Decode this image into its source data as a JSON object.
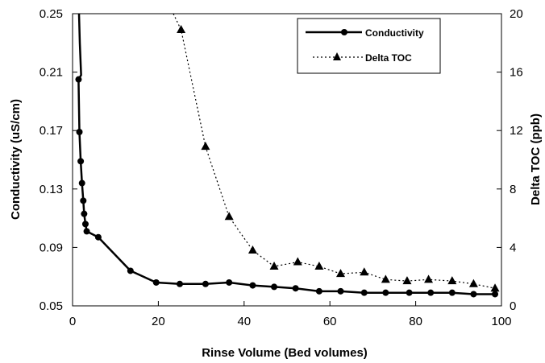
{
  "chart_data": {
    "type": "line",
    "xlabel": "Rinse Volume  (Bed volumes)",
    "ylabel": "Conductivity  (uS/cm)",
    "y2label": "Delta TOC  (ppb)",
    "xlim": [
      0,
      100
    ],
    "ylim": [
      0.05,
      0.25
    ],
    "y2lim": [
      0,
      20
    ],
    "xticks": [
      "0",
      "20",
      "40",
      "60",
      "80",
      "100"
    ],
    "yticks": [
      "0.05",
      "0.09",
      "0.13",
      "0.17",
      "0.21",
      "0.25"
    ],
    "y2ticks": [
      "0",
      "4",
      "8",
      "12",
      "16",
      "20"
    ],
    "grid": false,
    "legend_position": "top-right",
    "series": [
      {
        "name": "Conductivity",
        "axis": "left",
        "color": "#000000",
        "line_style": "solid",
        "marker": "circle",
        "curve_x": [
          1.5,
          1.7,
          2.0
        ],
        "curve_y": [
          0.25,
          0.23,
          0.208
        ],
        "x": [
          1.4,
          1.6,
          1.9,
          2.2,
          2.5,
          2.7,
          3.0,
          3.3,
          6.0,
          13.5,
          19.5,
          25.0,
          31.0,
          36.5,
          42.0,
          47.0,
          52.0,
          57.5,
          62.5,
          68.0,
          73.0,
          78.5,
          83.5,
          88.5,
          93.5,
          98.5
        ],
        "values": [
          0.205,
          0.169,
          0.149,
          0.134,
          0.122,
          0.113,
          0.106,
          0.101,
          0.097,
          0.074,
          0.066,
          0.065,
          0.065,
          0.066,
          0.064,
          0.063,
          0.062,
          0.06,
          0.06,
          0.059,
          0.059,
          0.059,
          0.059,
          0.059,
          0.058,
          0.058
        ]
      },
      {
        "name": "Delta TOC",
        "axis": "right",
        "color": "#000000",
        "line_style": "dotted",
        "marker": "triangle",
        "curve_x": [
          23.5
        ],
        "curve_y": [
          20.0
        ],
        "x": [
          25.3,
          31.0,
          36.5,
          42.0,
          47.0,
          52.5,
          57.5,
          62.5,
          68.0,
          73.0,
          78.0,
          83.0,
          88.5,
          93.5,
          98.5
        ],
        "values": [
          18.9,
          10.9,
          6.1,
          3.8,
          2.7,
          3.0,
          2.7,
          2.2,
          2.3,
          1.8,
          1.7,
          1.8,
          1.7,
          1.5,
          1.2
        ]
      }
    ]
  }
}
